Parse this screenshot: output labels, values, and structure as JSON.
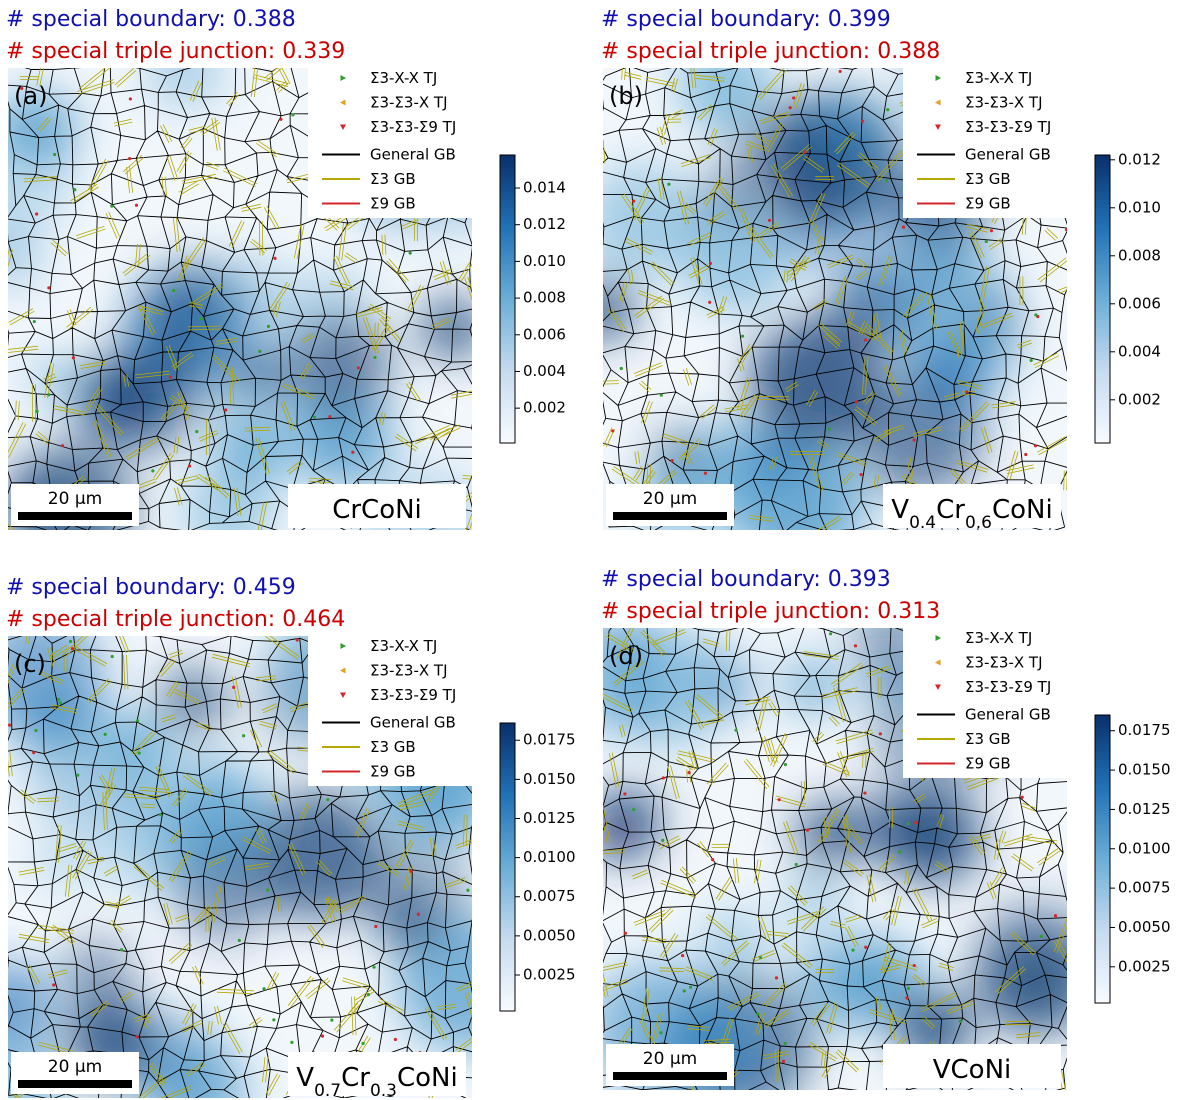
{
  "chart_data": [
    {
      "type": "map",
      "panel": "(a)",
      "title": "# special boundary: 0.388",
      "title_color": "#1010b0",
      "subtitle": "# special triple junction: 0.339",
      "subtitle_color": "#cc0000",
      "alloy": [
        "CrCoNi"
      ],
      "scale_bar": "20 μm",
      "legend": [
        {
          "name": "Σ3-X-X TJ",
          "color": "#2ca02c",
          "marker": "triangle-right"
        },
        {
          "name": "Σ3-Σ3-X TJ",
          "color": "#e8a020",
          "marker": "triangle-left"
        },
        {
          "name": "Σ3-Σ3-Σ9 TJ",
          "color": "#d62728",
          "marker": "triangle-down"
        },
        {
          "name": "General GB",
          "color": "#000000",
          "marker": "line"
        },
        {
          "name": "Σ3 GB",
          "color": "#b5a800",
          "marker": "line"
        },
        {
          "name": "Σ9 GB",
          "color": "#d62728",
          "marker": "line"
        }
      ],
      "colorbar": {
        "ylim": [
          0.0001,
          0.0158
        ],
        "yticks": [
          {
            "value": 0.002,
            "label": "0.002"
          },
          {
            "value": 0.004,
            "label": "0.004"
          },
          {
            "value": 0.006,
            "label": "0.006"
          },
          {
            "value": 0.008,
            "label": "0.008"
          },
          {
            "value": 0.01,
            "label": "0.010"
          },
          {
            "value": 0.012,
            "label": "0.012"
          },
          {
            "value": 0.014,
            "label": "0.014"
          }
        ]
      }
    },
    {
      "type": "map",
      "panel": "(b)",
      "title": "# special boundary: 0.399",
      "title_color": "#1010b0",
      "subtitle": "# special triple junction: 0.388",
      "subtitle_color": "#cc0000",
      "alloy": [
        "V",
        "0.4",
        "Cr",
        "0.6",
        "CoNi"
      ],
      "scale_bar": "20 μm",
      "legend": [
        {
          "name": "Σ3-X-X TJ",
          "color": "#2ca02c",
          "marker": "triangle-right"
        },
        {
          "name": "Σ3-Σ3-X TJ",
          "color": "#e8a020",
          "marker": "triangle-left"
        },
        {
          "name": "Σ3-Σ3-Σ9 TJ",
          "color": "#d62728",
          "marker": "triangle-down"
        },
        {
          "name": "General GB",
          "color": "#000000",
          "marker": "line"
        },
        {
          "name": "Σ3 GB",
          "color": "#b5a800",
          "marker": "line"
        },
        {
          "name": "Σ9 GB",
          "color": "#d62728",
          "marker": "line"
        }
      ],
      "colorbar": {
        "ylim": [
          0.0002,
          0.0122
        ],
        "yticks": [
          {
            "value": 0.002,
            "label": "0.002"
          },
          {
            "value": 0.004,
            "label": "0.004"
          },
          {
            "value": 0.006,
            "label": "0.006"
          },
          {
            "value": 0.008,
            "label": "0.008"
          },
          {
            "value": 0.01,
            "label": "0.010"
          },
          {
            "value": 0.012,
            "label": "0.012"
          }
        ]
      }
    },
    {
      "type": "map",
      "panel": "(c)",
      "title": "# special boundary: 0.459",
      "title_color": "#1010b0",
      "subtitle": "# special triple junction: 0.464",
      "subtitle_color": "#cc0000",
      "alloy": [
        "V",
        "0.7",
        "Cr",
        "0.3",
        "CoNi"
      ],
      "scale_bar": "20 μm",
      "legend": [
        {
          "name": "Σ3-X-X TJ",
          "color": "#2ca02c",
          "marker": "triangle-right"
        },
        {
          "name": "Σ3-Σ3-X TJ",
          "color": "#e8a020",
          "marker": "triangle-left"
        },
        {
          "name": "Σ3-Σ3-Σ9 TJ",
          "color": "#d62728",
          "marker": "triangle-down"
        },
        {
          "name": "General GB",
          "color": "#000000",
          "marker": "line"
        },
        {
          "name": "Σ3 GB",
          "color": "#b5a800",
          "marker": "line"
        },
        {
          "name": "Σ9 GB",
          "color": "#d62728",
          "marker": "line"
        }
      ],
      "colorbar": {
        "ylim": [
          0.0002,
          0.0186
        ],
        "yticks": [
          {
            "value": 0.0025,
            "label": "0.0025"
          },
          {
            "value": 0.005,
            "label": "0.0050"
          },
          {
            "value": 0.0075,
            "label": "0.0075"
          },
          {
            "value": 0.01,
            "label": "0.0100"
          },
          {
            "value": 0.0125,
            "label": "0.0125"
          },
          {
            "value": 0.015,
            "label": "0.0150"
          },
          {
            "value": 0.0175,
            "label": "0.0175"
          }
        ]
      }
    },
    {
      "type": "map",
      "panel": "(d)",
      "title": "# special boundary: 0.393",
      "title_color": "#1010b0",
      "subtitle": "# special triple junction: 0.313",
      "subtitle_color": "#cc0000",
      "alloy": [
        "VCoNi"
      ],
      "scale_bar": "20 μm",
      "legend": [
        {
          "name": "Σ3-X-X TJ",
          "color": "#2ca02c",
          "marker": "triangle-right"
        },
        {
          "name": "Σ3-Σ3-X TJ",
          "color": "#e8a020",
          "marker": "triangle-left"
        },
        {
          "name": "Σ3-Σ3-Σ9 TJ",
          "color": "#d62728",
          "marker": "triangle-down"
        },
        {
          "name": "General GB",
          "color": "#000000",
          "marker": "line"
        },
        {
          "name": "Σ3 GB",
          "color": "#b5a800",
          "marker": "line"
        },
        {
          "name": "Σ9 GB",
          "color": "#d62728",
          "marker": "line"
        }
      ],
      "colorbar": {
        "ylim": [
          0.0002,
          0.0185
        ],
        "yticks": [
          {
            "value": 0.0025,
            "label": "0.0025"
          },
          {
            "value": 0.005,
            "label": "0.0050"
          },
          {
            "value": 0.0075,
            "label": "0.0075"
          },
          {
            "value": 0.01,
            "label": "0.0100"
          },
          {
            "value": 0.0125,
            "label": "0.0125"
          },
          {
            "value": 0.015,
            "label": "0.0150"
          },
          {
            "value": 0.0175,
            "label": "0.0175"
          }
        ]
      }
    }
  ]
}
